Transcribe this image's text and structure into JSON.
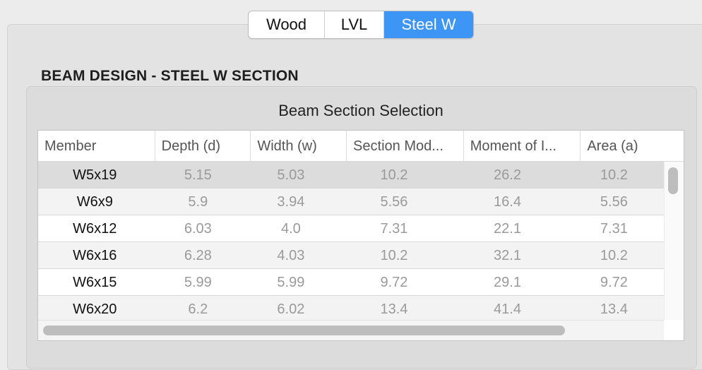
{
  "segmented_control": {
    "options": [
      "Wood",
      "LVL",
      "Steel W"
    ],
    "selected": "Steel W",
    "accent_color": "#3d95f5"
  },
  "section_title": "BEAM DESIGN - STEEL W SECTION",
  "group_title": "Beam Section Selection",
  "table": {
    "columns": [
      "Member",
      "Depth (d)",
      "Width (w)",
      "Section Mod...",
      "Moment of I...",
      "Area (a)"
    ],
    "rows": [
      [
        "W5x19",
        "5.15",
        "5.03",
        "10.2",
        "26.2",
        "10.2"
      ],
      [
        "W6x9",
        "5.9",
        "3.94",
        "5.56",
        "16.4",
        "5.56"
      ],
      [
        "W6x12",
        "6.03",
        "4.0",
        "7.31",
        "22.1",
        "7.31"
      ],
      [
        "W6x16",
        "6.28",
        "4.03",
        "10.2",
        "32.1",
        "10.2"
      ],
      [
        "W6x15",
        "5.99",
        "5.99",
        "9.72",
        "29.1",
        "9.72"
      ],
      [
        "W6x20",
        "6.2",
        "6.02",
        "13.4",
        "41.4",
        "13.4"
      ]
    ],
    "selected_row": "W5x19"
  }
}
